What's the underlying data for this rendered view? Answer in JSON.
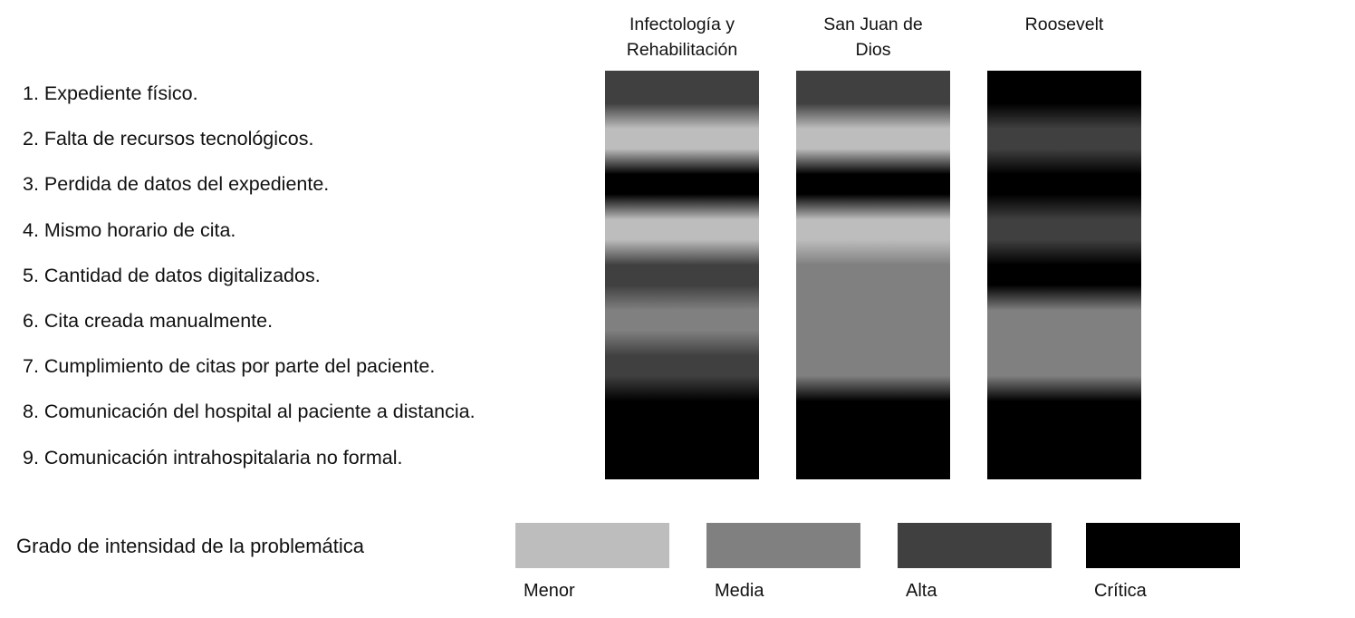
{
  "problems": [
    "1. Expediente físico.",
    "2. Falta de recursos tecnológicos.",
    "3. Perdida de datos del expediente.",
    "4. Mismo horario de cita.",
    "5. Cantidad de datos digitalizados.",
    "6. Cita creada manualmente.",
    "7. Cumplimiento de citas por parte del paciente.",
    "8. Comunicación del hospital al paciente a distancia.",
    "9. Comunicación intrahospitalaria no formal."
  ],
  "levels": [
    {
      "name": "Menor",
      "color": "#bdbdbd"
    },
    {
      "name": "Media",
      "color": "#808080"
    },
    {
      "name": "Alta",
      "color": "#404040"
    },
    {
      "name": "Crítica",
      "color": "#000000"
    }
  ],
  "hospitals": [
    {
      "name": "Infectología y\nRehabilitación",
      "intensity": [
        "Alta",
        "Menor",
        "Crítica",
        "Menor",
        "Alta",
        "Media",
        "Alta",
        "Crítica",
        "Crítica"
      ]
    },
    {
      "name": "San Juan de\nDios",
      "intensity": [
        "Alta",
        "Menor",
        "Crítica",
        "Menor",
        "Media",
        "Media",
        "Media",
        "Crítica",
        "Crítica"
      ]
    },
    {
      "name": "Roosevelt",
      "intensity": [
        "Crítica",
        "Alta",
        "Crítica",
        "Alta",
        "Crítica",
        "Media",
        "Media",
        "Crítica",
        "Crítica"
      ]
    }
  ],
  "legend": {
    "title": "Grado de intensidad de la problemática"
  }
}
